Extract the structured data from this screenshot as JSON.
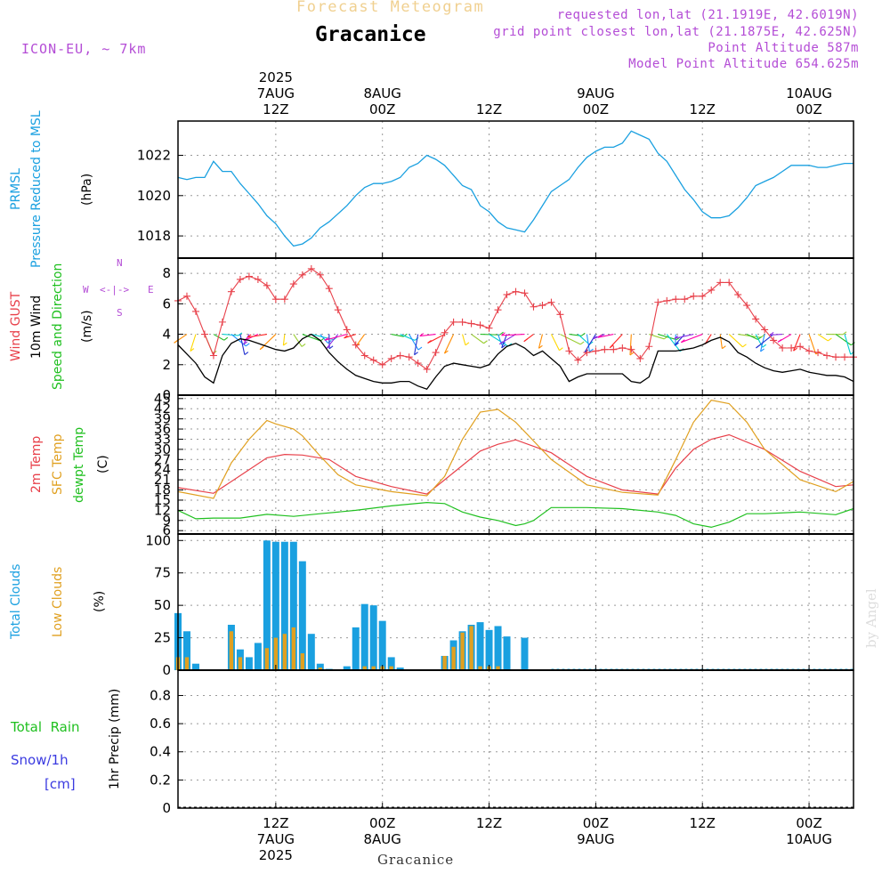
{
  "header": {
    "forecast_title": "Forecast Meteogram",
    "location": "Gracanice",
    "model": "ICON-EU, ~ 7km",
    "requested": "requested lon,lat (21.1919E, 42.6019N)",
    "grid_point": "grid point closest lon,lat (21.1875E, 42.625N)",
    "point_altitude": "Point Altitude 587m",
    "model_altitude": "Model Point Altitude 654.625m",
    "footer_location": "Gracanice",
    "watermark": "by Angel"
  },
  "time_axis": {
    "top_ticks": [
      {
        "t": 12,
        "lines": [
          "2025",
          "7AUG",
          "12Z"
        ]
      },
      {
        "t": 24,
        "lines": [
          "8AUG",
          "00Z"
        ]
      },
      {
        "t": 36,
        "lines": [
          "12Z"
        ]
      },
      {
        "t": 48,
        "lines": [
          "9AUG",
          "00Z"
        ]
      },
      {
        "t": 60,
        "lines": [
          "12Z"
        ]
      },
      {
        "t": 72,
        "lines": [
          "10AUG",
          "00Z"
        ]
      }
    ],
    "bottom_ticks": [
      {
        "t": 12,
        "lines": [
          "12Z",
          "7AUG",
          "2025"
        ]
      },
      {
        "t": 24,
        "lines": [
          "00Z",
          "8AUG"
        ]
      },
      {
        "t": 36,
        "lines": [
          "12Z"
        ]
      },
      {
        "t": 48,
        "lines": [
          "00Z",
          "9AUG"
        ]
      },
      {
        "t": 60,
        "lines": [
          "12Z"
        ]
      },
      {
        "t": 72,
        "lines": [
          "00Z",
          "10AUG"
        ]
      }
    ],
    "range": [
      1,
      77
    ]
  },
  "labels": {
    "p1": [
      {
        "text": "PRMSL",
        "color": "#1aa0e0"
      },
      {
        "text": "Pressure Reduced to MSL",
        "color": "#1aa0e0"
      },
      {
        "text": "(hPa)",
        "color": "#000000"
      }
    ],
    "p2": [
      {
        "text": "Wind GUST",
        "color": "#e8404a"
      },
      {
        "text": "10m Wind",
        "color": "#000000"
      },
      {
        "text": "Speed and Direction",
        "color": "#20c020"
      },
      {
        "text": "(m/s)",
        "color": "#000000"
      }
    ],
    "compass": {
      "n": "N",
      "s": "S",
      "w": "W",
      "e": "E"
    },
    "p3": [
      {
        "text": "2m Temp",
        "color": "#e8404a"
      },
      {
        "text": "SFC Temp",
        "color": "#e0a020"
      },
      {
        "text": "dewpt Temp",
        "color": "#20c020"
      },
      {
        "text": "(C)",
        "color": "#000000"
      }
    ],
    "p4": [
      {
        "text": "Total Clouds",
        "color": "#1aa0e0"
      },
      {
        "text": "Low Clouds",
        "color": "#e0a020"
      },
      {
        "text": "(%)",
        "color": "#000000"
      }
    ],
    "p5_left": [
      {
        "text": "Total  Rain",
        "color": "#20c020"
      },
      {
        "text": "Snow/1h",
        "color": "#3a3ae0"
      },
      {
        "text": "[cm]",
        "color": "#3a3ae0"
      }
    ],
    "p5": [
      {
        "text": "1hr Precip (mm)",
        "color": "#000000"
      }
    ]
  },
  "chart_data": [
    {
      "type": "line",
      "name": "PRMSL",
      "ylim": [
        1016.9,
        1023.7
      ],
      "yticks": [
        1018,
        1020,
        1022
      ],
      "color": "#1aa0e0",
      "x": [
        1,
        2,
        3,
        4,
        5,
        6,
        7,
        8,
        9,
        10,
        11,
        12,
        13,
        14,
        15,
        16,
        17,
        18,
        19,
        20,
        21,
        22,
        23,
        24,
        25,
        26,
        27,
        28,
        29,
        30,
        31,
        32,
        33,
        34,
        35,
        36,
        37,
        38,
        39,
        40,
        41,
        42,
        43,
        44,
        45,
        46,
        47,
        48,
        49,
        50,
        51,
        52,
        53,
        54,
        55,
        56,
        57,
        58,
        59,
        60,
        61,
        62,
        63,
        64,
        65,
        66,
        67,
        68,
        69,
        70,
        71,
        72,
        73,
        74,
        75,
        76,
        77
      ],
      "y": [
        1020.9,
        1020.8,
        1020.9,
        1020.9,
        1021.7,
        1021.2,
        1021.2,
        1020.6,
        1020.1,
        1019.6,
        1019.0,
        1018.6,
        1018.0,
        1017.5,
        1017.6,
        1017.9,
        1018.4,
        1018.7,
        1019.1,
        1019.5,
        1020.0,
        1020.4,
        1020.6,
        1020.6,
        1020.7,
        1020.9,
        1021.4,
        1021.6,
        1022.0,
        1021.8,
        1021.5,
        1021.0,
        1020.5,
        1020.3,
        1019.5,
        1019.2,
        1018.7,
        1018.4,
        1018.3,
        1018.2,
        1018.8,
        1019.5,
        1020.2,
        1020.5,
        1020.8,
        1021.4,
        1021.9,
        1022.2,
        1022.4,
        1022.4,
        1022.6,
        1023.2,
        1023.0,
        1022.8,
        1022.1,
        1021.7,
        1021.0,
        1020.3,
        1019.8,
        1019.2,
        1018.9,
        1018.9,
        1019.0,
        1019.4,
        1019.9,
        1020.5,
        1020.7,
        1020.9,
        1021.2,
        1021.5,
        1021.5,
        1021.5,
        1021.4,
        1021.4,
        1021.5,
        1021.6,
        1021.6
      ]
    },
    {
      "type": "line",
      "name": "Wind",
      "ylim": [
        0,
        9
      ],
      "yticks": [
        0,
        2,
        4,
        6,
        8
      ],
      "series": [
        {
          "name": "Wind GUST",
          "color": "#e8404a",
          "marker": "+",
          "x": [
            1,
            2,
            3,
            4,
            5,
            6,
            7,
            8,
            9,
            10,
            11,
            12,
            13,
            14,
            15,
            16,
            17,
            18,
            19,
            20,
            21,
            22,
            23,
            24,
            25,
            26,
            27,
            28,
            29,
            30,
            31,
            32,
            33,
            34,
            35,
            36,
            37,
            38,
            39,
            40,
            41,
            42,
            43,
            44,
            45,
            46,
            47,
            48,
            49,
            50,
            51,
            52,
            53,
            54,
            55,
            56,
            57,
            58,
            59,
            60,
            61,
            62,
            63,
            64,
            65,
            66,
            67,
            68,
            69,
            70,
            71,
            72,
            73,
            74,
            75,
            76,
            77
          ],
          "y": [
            6.2,
            6.5,
            5.5,
            4.0,
            2.6,
            4.8,
            6.8,
            7.6,
            7.8,
            7.6,
            7.2,
            6.3,
            6.3,
            7.3,
            7.9,
            8.3,
            7.9,
            7.0,
            5.6,
            4.3,
            3.3,
            2.6,
            2.3,
            2.0,
            2.4,
            2.6,
            2.5,
            2.1,
            1.7,
            2.8,
            4.1,
            4.8,
            4.8,
            4.7,
            4.6,
            4.4,
            5.6,
            6.6,
            6.8,
            6.7,
            5.8,
            5.9,
            6.1,
            5.3,
            2.9,
            2.3,
            2.8,
            2.9,
            3.0,
            3.0,
            3.1,
            3.0,
            2.4,
            3.2,
            6.1,
            6.2,
            6.3,
            6.3,
            6.5,
            6.5,
            6.9,
            7.4,
            7.4,
            6.6,
            5.9,
            5.0,
            4.3,
            3.6,
            3.1,
            3.1,
            3.2,
            2.9,
            2.8,
            2.6,
            2.5,
            2.5,
            2.5
          ]
        },
        {
          "name": "10m Wind",
          "color": "#000000",
          "x": [
            1,
            2,
            3,
            4,
            5,
            6,
            7,
            8,
            9,
            10,
            11,
            12,
            13,
            14,
            15,
            16,
            17,
            18,
            19,
            20,
            21,
            22,
            23,
            24,
            25,
            26,
            27,
            28,
            29,
            30,
            31,
            32,
            33,
            34,
            35,
            36,
            37,
            38,
            39,
            40,
            41,
            42,
            43,
            44,
            45,
            46,
            47,
            48,
            49,
            50,
            51,
            52,
            53,
            54,
            55,
            56,
            57,
            58,
            59,
            60,
            61,
            62,
            63,
            64,
            65,
            66,
            67,
            68,
            69,
            70,
            71,
            72,
            73,
            74,
            75,
            76,
            77
          ],
          "y": [
            3.3,
            2.7,
            2.1,
            1.2,
            0.8,
            2.6,
            3.4,
            3.7,
            3.6,
            3.4,
            3.2,
            3.0,
            2.9,
            3.1,
            3.7,
            4.0,
            3.6,
            2.8,
            2.2,
            1.7,
            1.3,
            1.1,
            0.9,
            0.8,
            0.8,
            0.9,
            0.9,
            0.6,
            0.4,
            1.2,
            1.9,
            2.1,
            2.0,
            1.9,
            1.8,
            2.0,
            2.7,
            3.2,
            3.4,
            3.1,
            2.6,
            2.9,
            2.4,
            1.9,
            0.9,
            1.2,
            1.4,
            1.4,
            1.4,
            1.4,
            1.4,
            0.9,
            0.8,
            1.2,
            2.9,
            2.9,
            2.9,
            3.0,
            3.1,
            3.3,
            3.6,
            3.8,
            3.5,
            2.8,
            2.5,
            2.1,
            1.8,
            1.6,
            1.5,
            1.6,
            1.7,
            1.5,
            1.4,
            1.3,
            1.3,
            1.2,
            0.9
          ]
        }
      ],
      "barbs_y": 4.0,
      "barb_colors": [
        "#ff2020",
        "#ff8c00",
        "#ffd700",
        "#9acd32",
        "#22bb22",
        "#00ced1",
        "#1e90ff",
        "#2030d0",
        "#8a2be2",
        "#ff00aa"
      ]
    },
    {
      "type": "line",
      "name": "Temperature",
      "ylim": [
        5,
        46
      ],
      "yticks": [
        6,
        9,
        12,
        15,
        18,
        21,
        24,
        27,
        30,
        33,
        36,
        39,
        42,
        45
      ],
      "series": [
        {
          "name": "2m Temp",
          "color": "#e8404a",
          "x": [
            1,
            5,
            9,
            11,
            13,
            15,
            18,
            21,
            25,
            29,
            31,
            35,
            37,
            39,
            43,
            47,
            51,
            55,
            57,
            59,
            61,
            63,
            67,
            71,
            75,
            77
          ],
          "y": [
            18.7,
            17.0,
            24.0,
            27.5,
            28.5,
            28.3,
            27.0,
            22.0,
            19.0,
            16.8,
            21.0,
            29.5,
            31.5,
            32.8,
            29.0,
            22.0,
            18.0,
            16.8,
            24.5,
            30.0,
            33.0,
            34.3,
            30.0,
            23.5,
            19.0,
            19.5
          ]
        },
        {
          "name": "SFC Temp",
          "color": "#e0a020",
          "x": [
            1,
            5,
            7,
            9,
            11,
            12,
            14,
            15,
            17,
            19,
            21,
            25,
            29,
            31,
            33,
            35,
            37,
            39,
            43,
            47,
            51,
            55,
            57,
            59,
            61,
            63,
            65,
            67,
            71,
            75,
            77
          ],
          "y": [
            17.5,
            15.5,
            26.0,
            33.0,
            38.5,
            37.5,
            36.0,
            34.0,
            28.0,
            22.5,
            19.5,
            17.5,
            16.3,
            22.0,
            33.0,
            41.0,
            41.8,
            38.0,
            27.0,
            19.5,
            17.3,
            16.5,
            27.0,
            38.0,
            44.5,
            43.5,
            38.0,
            30.0,
            21.0,
            17.5,
            20.5
          ]
        },
        {
          "name": "dewpt Temp",
          "color": "#20c020",
          "x": [
            1,
            3,
            5,
            8,
            11,
            14,
            17,
            21,
            25,
            29,
            31,
            33,
            35,
            37,
            39,
            40,
            41,
            43,
            47,
            51,
            55,
            57,
            59,
            61,
            63,
            65,
            67,
            71,
            75,
            77
          ],
          "y": [
            12.0,
            9.5,
            9.7,
            9.7,
            10.8,
            10.2,
            11.0,
            12.0,
            13.3,
            14.3,
            14.0,
            11.5,
            10.0,
            9.0,
            7.5,
            8.0,
            9.0,
            12.8,
            12.8,
            12.5,
            11.5,
            10.5,
            8.0,
            7.0,
            8.5,
            11.0,
            11.0,
            11.5,
            10.7,
            12.5
          ]
        }
      ]
    },
    {
      "type": "bar",
      "name": "Clouds",
      "ylim": [
        0,
        105
      ],
      "yticks": [
        0,
        25,
        50,
        75,
        100
      ],
      "series": [
        {
          "name": "Total Clouds",
          "color": "#1aa0e0",
          "x": [
            1,
            2,
            3,
            4,
            5,
            6,
            7,
            8,
            9,
            10,
            11,
            12,
            13,
            14,
            15,
            16,
            17,
            18,
            19,
            20,
            21,
            22,
            23,
            24,
            25,
            26,
            27,
            28,
            29,
            30,
            31,
            32,
            33,
            34,
            35,
            36,
            37,
            38,
            39,
            40,
            41,
            42,
            43
          ],
          "y": [
            44,
            30,
            5,
            0,
            0,
            0,
            35,
            16,
            10,
            21,
            100,
            99,
            99,
            99,
            84,
            28,
            5,
            1,
            0,
            3,
            33,
            51,
            50,
            38,
            10,
            2,
            0,
            0,
            0,
            0,
            11,
            23,
            30,
            35,
            37,
            31,
            34,
            26,
            0,
            25,
            0,
            0,
            0
          ]
        },
        {
          "name": "Low Clouds",
          "color": "#e0a020",
          "x": [
            1,
            2,
            3,
            4,
            5,
            6,
            7,
            8,
            9,
            10,
            11,
            12,
            13,
            14,
            15,
            16,
            17,
            18,
            19,
            20,
            21,
            22,
            23,
            24,
            25,
            26,
            27,
            28,
            29,
            30,
            31,
            32,
            33,
            34,
            35,
            36,
            37,
            38,
            39,
            40,
            41,
            42,
            43
          ],
          "y": [
            10,
            10,
            0,
            0,
            0,
            0,
            30,
            10,
            0,
            0,
            17,
            25,
            28,
            33,
            13,
            0,
            2,
            0,
            0,
            0,
            0,
            3,
            3,
            3,
            3,
            0,
            0,
            0,
            0,
            0,
            11,
            18,
            29,
            34,
            3,
            3,
            3,
            0,
            0,
            0,
            0,
            0,
            0
          ]
        }
      ]
    },
    {
      "type": "bar",
      "name": "Precipitation",
      "ylim": [
        0,
        0.98
      ],
      "yticks": [
        0,
        0.2,
        0.4,
        0.6,
        0.8
      ],
      "ytick_labels": [
        "0",
        "0.2",
        "0.4",
        "0.6",
        "0.8"
      ],
      "series": [
        {
          "name": "Total Rain",
          "color": "#20c020",
          "x": [],
          "y": []
        }
      ]
    }
  ]
}
